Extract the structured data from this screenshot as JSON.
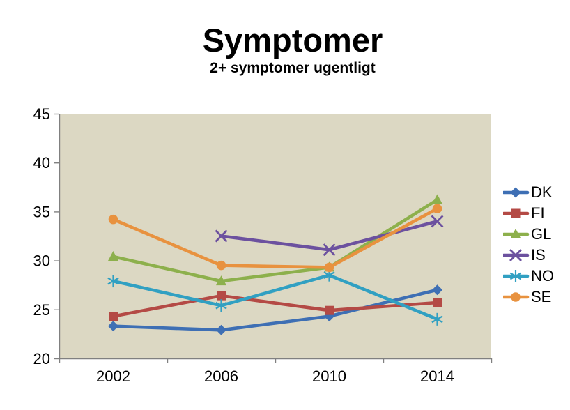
{
  "chart_data": {
    "type": "line",
    "title": "Symptomer",
    "subtitle": "2+ symptomer ugentligt",
    "categories": [
      "2002",
      "2006",
      "2010",
      "2014"
    ],
    "series": [
      {
        "name": "DK",
        "color": "#3E6FB4",
        "marker": "diamond",
        "values": [
          23.3,
          22.9,
          24.3,
          27.0
        ]
      },
      {
        "name": "FI",
        "color": "#B44A45",
        "marker": "square",
        "values": [
          24.3,
          26.4,
          24.9,
          25.7
        ]
      },
      {
        "name": "GL",
        "color": "#8DB04C",
        "marker": "triangle",
        "values": [
          30.4,
          27.9,
          29.3,
          36.2
        ]
      },
      {
        "name": "IS",
        "color": "#6C519F",
        "marker": "x",
        "values": [
          null,
          32.5,
          31.1,
          34.0
        ]
      },
      {
        "name": "NO",
        "color": "#31A0C2",
        "marker": "asterisk",
        "values": [
          27.9,
          25.4,
          28.5,
          24.0
        ]
      },
      {
        "name": "SE",
        "color": "#E8923F",
        "marker": "circle",
        "values": [
          34.2,
          29.5,
          29.3,
          35.3
        ]
      }
    ],
    "ylim": [
      20,
      45
    ],
    "yticks": [
      45,
      40,
      35,
      30,
      25,
      20
    ],
    "xlabel": "",
    "ylabel": "",
    "legend_position": "right",
    "grid": false,
    "plot_bg_color": "#DCD8C3",
    "axis_color": "#808080",
    "text_color": "#000000"
  }
}
